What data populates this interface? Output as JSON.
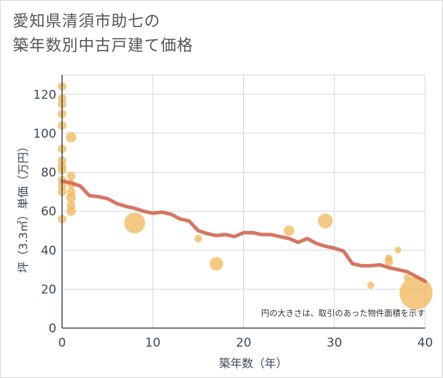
{
  "chart_data": {
    "type": "scatter",
    "title_lines": [
      "愛知県清須市助七の",
      "築年数別中古戸建て価格"
    ],
    "xlabel": "築年数（年）",
    "ylabel": "坪（3.3㎡）単価（万円）",
    "xlim": [
      0,
      40
    ],
    "ylim": [
      0,
      130
    ],
    "xticks": [
      0,
      10,
      20,
      30,
      40
    ],
    "yticks": [
      0,
      20,
      40,
      60,
      80,
      100,
      120
    ],
    "grid": true,
    "note": "円の大きさは、取引のあった物件面積を示す",
    "colors": {
      "bubble": "#f0b454",
      "line": "#d26a55",
      "grid": "#cfd8e0",
      "axis": "#3a4a5a"
    },
    "points": [
      {
        "x": 0,
        "y": 124,
        "size": 1
      },
      {
        "x": 0,
        "y": 118,
        "size": 1
      },
      {
        "x": 0,
        "y": 115,
        "size": 1
      },
      {
        "x": 0,
        "y": 110,
        "size": 1
      },
      {
        "x": 0,
        "y": 104,
        "size": 1
      },
      {
        "x": 0,
        "y": 92,
        "size": 1
      },
      {
        "x": 0,
        "y": 86,
        "size": 1
      },
      {
        "x": 0,
        "y": 83,
        "size": 1
      },
      {
        "x": 0,
        "y": 81,
        "size": 1
      },
      {
        "x": 0,
        "y": 76,
        "size": 1
      },
      {
        "x": 0,
        "y": 73,
        "size": 1
      },
      {
        "x": 0,
        "y": 70,
        "size": 1
      },
      {
        "x": 0,
        "y": 56,
        "size": 1
      },
      {
        "x": 1,
        "y": 98,
        "size": 1.5
      },
      {
        "x": 1,
        "y": 78,
        "size": 1
      },
      {
        "x": 1,
        "y": 74,
        "size": 1
      },
      {
        "x": 1,
        "y": 70,
        "size": 1
      },
      {
        "x": 1,
        "y": 67,
        "size": 1.3
      },
      {
        "x": 1,
        "y": 63,
        "size": 1
      },
      {
        "x": 1,
        "y": 60,
        "size": 1.2
      },
      {
        "x": 8,
        "y": 54,
        "size": 6
      },
      {
        "x": 15,
        "y": 46,
        "size": 0.8
      },
      {
        "x": 17,
        "y": 33,
        "size": 2.5
      },
      {
        "x": 25,
        "y": 50,
        "size": 1.5
      },
      {
        "x": 29,
        "y": 55,
        "size": 3
      },
      {
        "x": 34,
        "y": 22,
        "size": 0.7
      },
      {
        "x": 36,
        "y": 36,
        "size": 0.7
      },
      {
        "x": 36,
        "y": 34,
        "size": 1
      },
      {
        "x": 37,
        "y": 40,
        "size": 0.6
      },
      {
        "x": 38,
        "y": 26,
        "size": 0.6
      },
      {
        "x": 39,
        "y": 18,
        "size": 15
      }
    ],
    "trend": {
      "x": [
        0,
        1,
        2,
        3,
        4,
        5,
        6,
        7,
        8,
        9,
        10,
        11,
        12,
        13,
        14,
        15,
        16,
        17,
        18,
        19,
        20,
        21,
        22,
        23,
        24,
        25,
        26,
        27,
        28,
        29,
        30,
        31,
        32,
        33,
        34,
        35,
        36,
        37,
        38,
        39,
        40
      ],
      "y": [
        75.5,
        74.5,
        73,
        68,
        67.5,
        66.5,
        64,
        62.5,
        61.5,
        60,
        59,
        59.5,
        58.5,
        56,
        55,
        50,
        48.5,
        47.5,
        48,
        47,
        49,
        49,
        48,
        48,
        47,
        46,
        44,
        46,
        43.5,
        42,
        41,
        39.5,
        33,
        32,
        32,
        32.5,
        31,
        30,
        29,
        26.5,
        24
      ]
    }
  }
}
